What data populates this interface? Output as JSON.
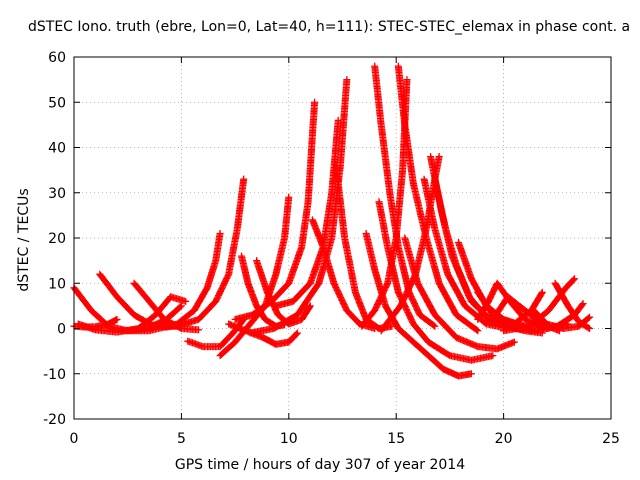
{
  "chart_data": {
    "type": "scatter",
    "title": "dSTEC Iono. truth (ebre, Lon=0, Lat=40, h=111): STEC-STEC_elemax in phase cont. a",
    "xlabel": "GPS time / hours of day 307 of year 2014",
    "ylabel": "dSTEC  / TECUs",
    "xlim": [
      0,
      25
    ],
    "ylim": [
      -20,
      60
    ],
    "xticks": [
      "0",
      "5",
      "10",
      "15",
      "20",
      "25"
    ],
    "yticks": [
      "-20",
      "-10",
      "0",
      "10",
      "20",
      "30",
      "40",
      "50",
      "60"
    ],
    "grid": true,
    "marker": "+",
    "color": "#ff0000",
    "series": [
      {
        "points": [
          [
            0,
            9
          ],
          [
            0.8,
            4
          ],
          [
            1.6,
            0.5
          ],
          [
            2.5,
            -0.5
          ],
          [
            3.4,
            0
          ],
          [
            4.3,
            2
          ],
          [
            5,
            5
          ]
        ]
      },
      {
        "points": [
          [
            0,
            0.5
          ],
          [
            0.5,
            0.3
          ],
          [
            1,
            0.4
          ],
          [
            1.6,
            1
          ],
          [
            2,
            2
          ]
        ]
      },
      {
        "points": [
          [
            1.2,
            12
          ],
          [
            2,
            7
          ],
          [
            2.8,
            3
          ],
          [
            3.6,
            0.8
          ],
          [
            4.3,
            0.3
          ],
          [
            4.9,
            0.8
          ]
        ]
      },
      {
        "points": [
          [
            0.2,
            1
          ],
          [
            1,
            -0.3
          ],
          [
            2,
            -0.8
          ],
          [
            3,
            0
          ],
          [
            3.8,
            3
          ],
          [
            4.5,
            7
          ],
          [
            5.2,
            6
          ]
        ]
      },
      {
        "points": [
          [
            2.8,
            10
          ],
          [
            3.5,
            6
          ],
          [
            4.2,
            2
          ],
          [
            5,
            0
          ],
          [
            5.8,
            -0.3
          ]
        ]
      },
      {
        "points": [
          [
            2.2,
            -0.5
          ],
          [
            3.5,
            -0.5
          ],
          [
            4.8,
            1
          ],
          [
            5.6,
            4
          ],
          [
            6.2,
            9
          ],
          [
            6.6,
            15
          ],
          [
            6.8,
            21
          ]
        ]
      },
      {
        "points": [
          [
            3.6,
            0.5
          ],
          [
            4.8,
            0.5
          ],
          [
            5.8,
            2
          ],
          [
            6.6,
            6
          ],
          [
            7.2,
            12
          ],
          [
            7.6,
            22
          ],
          [
            7.9,
            33
          ]
        ]
      },
      {
        "points": [
          [
            5.3,
            -2.8
          ],
          [
            6,
            -4
          ],
          [
            6.8,
            -4
          ],
          [
            7.4,
            -1
          ],
          [
            7.9,
            2
          ]
        ]
      },
      {
        "points": [
          [
            6.8,
            -6
          ],
          [
            7.5,
            -3
          ],
          [
            8.2,
            1
          ],
          [
            8.9,
            5
          ],
          [
            9.4,
            12
          ],
          [
            9.8,
            20
          ],
          [
            10,
            29
          ]
        ]
      },
      {
        "points": [
          [
            7.8,
            16
          ],
          [
            8.1,
            10
          ],
          [
            8.5,
            5
          ],
          [
            8.9,
            2
          ],
          [
            9.4,
            0.5
          ],
          [
            9.8,
            0.8
          ]
        ]
      },
      {
        "points": [
          [
            7.2,
            1
          ],
          [
            8,
            -0.5
          ],
          [
            8.8,
            -2
          ],
          [
            9.4,
            -3.5
          ],
          [
            10,
            -3
          ],
          [
            10.4,
            -1
          ]
        ]
      },
      {
        "points": [
          [
            8.5,
            15
          ],
          [
            9,
            8
          ],
          [
            9.5,
            3
          ],
          [
            10,
            1
          ],
          [
            10.6,
            2
          ],
          [
            11,
            5
          ]
        ]
      },
      {
        "points": [
          [
            7.5,
            2
          ],
          [
            8.3,
            3
          ],
          [
            9.2,
            6
          ],
          [
            10,
            10
          ],
          [
            10.6,
            18
          ],
          [
            10.9,
            28
          ],
          [
            11.2,
            50
          ]
        ]
      },
      {
        "points": [
          [
            9.4,
            5
          ],
          [
            10.2,
            6
          ],
          [
            11,
            10
          ],
          [
            11.6,
            18
          ],
          [
            12,
            30
          ],
          [
            12.3,
            46
          ]
        ]
      },
      {
        "points": [
          [
            8.2,
            -1
          ],
          [
            9.3,
            0
          ],
          [
            10.4,
            3
          ],
          [
            11.4,
            10
          ],
          [
            12,
            20
          ],
          [
            12.4,
            36
          ],
          [
            12.7,
            55
          ]
        ]
      },
      {
        "points": [
          [
            11.1,
            24
          ],
          [
            11.6,
            18
          ],
          [
            12.1,
            10
          ],
          [
            12.7,
            4
          ],
          [
            13.3,
            1
          ],
          [
            14,
            0
          ]
        ]
      },
      {
        "points": [
          [
            12.2,
            36
          ],
          [
            12.6,
            20
          ],
          [
            13.1,
            8
          ],
          [
            13.6,
            2
          ],
          [
            14.2,
            0
          ],
          [
            14.8,
            0.5
          ]
        ]
      },
      {
        "points": [
          [
            13.6,
            21
          ],
          [
            14,
            13
          ],
          [
            14.5,
            5
          ],
          [
            15.1,
            0
          ],
          [
            15.8,
            -3
          ],
          [
            16.5,
            -6
          ],
          [
            17.2,
            -9
          ],
          [
            17.9,
            -10.5
          ],
          [
            18.5,
            -10
          ]
        ]
      },
      {
        "points": [
          [
            13.4,
            0.5
          ],
          [
            14,
            4
          ],
          [
            14.6,
            10
          ],
          [
            15,
            20
          ],
          [
            15.3,
            35
          ],
          [
            15.5,
            55
          ]
        ]
      },
      {
        "points": [
          [
            14,
            58
          ],
          [
            14.3,
            45
          ],
          [
            14.7,
            30
          ],
          [
            15.1,
            18
          ],
          [
            15.6,
            8
          ],
          [
            16.1,
            3
          ],
          [
            16.8,
            0.5
          ]
        ]
      },
      {
        "points": [
          [
            14.2,
            28
          ],
          [
            14.6,
            18
          ],
          [
            15.1,
            8
          ],
          [
            15.8,
            1
          ],
          [
            16.5,
            -3
          ],
          [
            17.5,
            -6
          ],
          [
            18.5,
            -7
          ],
          [
            19.5,
            -6
          ]
        ]
      },
      {
        "points": [
          [
            14.3,
            -0.5
          ],
          [
            15.2,
            5
          ],
          [
            15.9,
            12
          ],
          [
            16.4,
            22
          ],
          [
            16.8,
            33
          ],
          [
            17,
            38
          ]
        ]
      },
      {
        "points": [
          [
            15.1,
            58
          ],
          [
            15.4,
            45
          ],
          [
            15.8,
            32
          ],
          [
            16.4,
            20
          ],
          [
            17,
            10
          ],
          [
            17.8,
            3
          ],
          [
            18.8,
            -0.5
          ]
        ]
      },
      {
        "points": [
          [
            15.4,
            20
          ],
          [
            16,
            10
          ],
          [
            16.8,
            3
          ],
          [
            17.8,
            -2
          ],
          [
            18.8,
            -4
          ],
          [
            19.7,
            -4.5
          ],
          [
            20.5,
            -3
          ]
        ]
      },
      {
        "points": [
          [
            16.3,
            33
          ],
          [
            16.8,
            22
          ],
          [
            17.4,
            12
          ],
          [
            18.2,
            5
          ],
          [
            19.2,
            1
          ],
          [
            20.2,
            0
          ]
        ]
      },
      {
        "points": [
          [
            16.6,
            38
          ],
          [
            17.1,
            26
          ],
          [
            17.6,
            16
          ],
          [
            18.4,
            7
          ],
          [
            19.3,
            2
          ],
          [
            20.3,
            0.5
          ]
        ]
      },
      {
        "points": [
          [
            16.8,
            33
          ],
          [
            17.3,
            22
          ],
          [
            17.8,
            14
          ],
          [
            18.5,
            6
          ],
          [
            19.5,
            1.5
          ],
          [
            20.5,
            0
          ]
        ]
      },
      {
        "points": [
          [
            17.9,
            19
          ],
          [
            18.5,
            11
          ],
          [
            19.2,
            5
          ],
          [
            20,
            2
          ],
          [
            21,
            0.5
          ],
          [
            22,
            0.5
          ]
        ]
      },
      {
        "points": [
          [
            18.8,
            8
          ],
          [
            19.5,
            3
          ],
          [
            20.2,
            0.5
          ],
          [
            21,
            -0.5
          ],
          [
            21.8,
            -1
          ]
        ]
      },
      {
        "points": [
          [
            18.8,
            2
          ],
          [
            19.3,
            6
          ],
          [
            19.7,
            10
          ],
          [
            20.3,
            6
          ],
          [
            21,
            2
          ],
          [
            22,
            0
          ],
          [
            23,
            1
          ]
        ]
      },
      {
        "points": [
          [
            19.5,
            2
          ],
          [
            20.2,
            7
          ],
          [
            21,
            4
          ],
          [
            21.8,
            1
          ],
          [
            22.6,
            -0.5
          ]
        ]
      },
      {
        "points": [
          [
            19.4,
            3
          ],
          [
            20.5,
            1
          ],
          [
            21.3,
            4
          ],
          [
            21.8,
            8
          ]
        ]
      },
      {
        "points": [
          [
            20,
            -0.5
          ],
          [
            21.2,
            0.5
          ],
          [
            22.1,
            4
          ],
          [
            22.9,
            9
          ],
          [
            23.3,
            11
          ]
        ]
      },
      {
        "points": [
          [
            21.4,
            4
          ],
          [
            22,
            1
          ],
          [
            22.8,
            0
          ],
          [
            23.5,
            0.5
          ],
          [
            24,
            2.5
          ]
        ]
      },
      {
        "points": [
          [
            20.5,
            0
          ],
          [
            21.5,
            -0.5
          ],
          [
            22.5,
            0.5
          ],
          [
            23.3,
            3
          ],
          [
            23.7,
            5.5
          ]
        ]
      },
      {
        "points": [
          [
            22.4,
            10
          ],
          [
            23,
            5
          ],
          [
            23.5,
            1.5
          ],
          [
            24,
            0
          ]
        ]
      }
    ]
  }
}
